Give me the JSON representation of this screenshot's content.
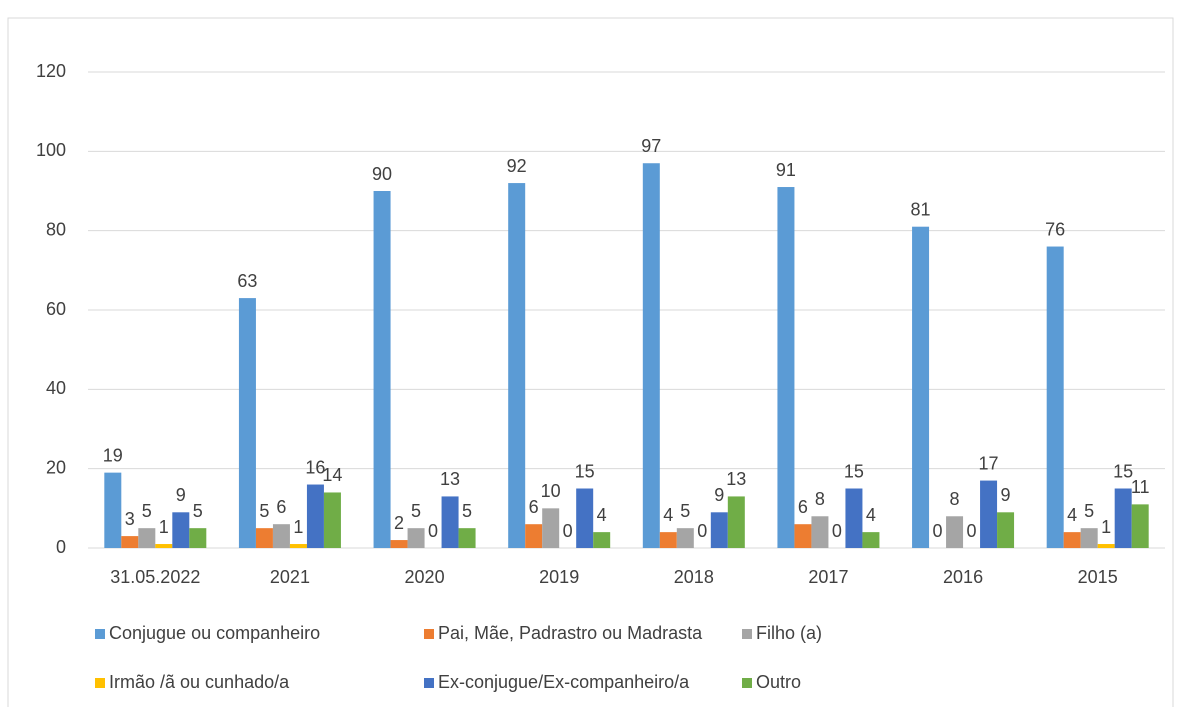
{
  "chart_data": {
    "type": "bar",
    "categories": [
      "31.05.2022",
      "2021",
      "2020",
      "2019",
      "2018",
      "2017",
      "2016",
      "2015"
    ],
    "series": [
      {
        "name": "Conjugue ou companheiro",
        "color": "#5b9bd5",
        "values": [
          19,
          63,
          90,
          92,
          97,
          91,
          81,
          76
        ]
      },
      {
        "name": "Pai, Mãe, Padrastro ou Madrasta",
        "color": "#ed7d31",
        "values": [
          3,
          5,
          2,
          6,
          4,
          6,
          0,
          4
        ]
      },
      {
        "name": "Filho (a)",
        "color": "#a5a5a5",
        "values": [
          5,
          6,
          5,
          10,
          5,
          8,
          8,
          5
        ]
      },
      {
        "name": "Irmão /ã ou cunhado/a",
        "color": "#ffc000",
        "values": [
          1,
          1,
          0,
          0,
          0,
          0,
          0,
          1
        ]
      },
      {
        "name": "Ex-conjugue/Ex-companheiro/a",
        "color": "#4472c4",
        "values": [
          9,
          16,
          13,
          15,
          9,
          15,
          17,
          15
        ]
      },
      {
        "name": "Outro",
        "color": "#70ad47",
        "values": [
          5,
          14,
          5,
          4,
          13,
          4,
          9,
          11
        ]
      }
    ],
    "ylim": [
      0,
      120
    ],
    "yticks": [
      0,
      20,
      40,
      60,
      80,
      100,
      120
    ],
    "grid": true,
    "legend": "bottom"
  }
}
